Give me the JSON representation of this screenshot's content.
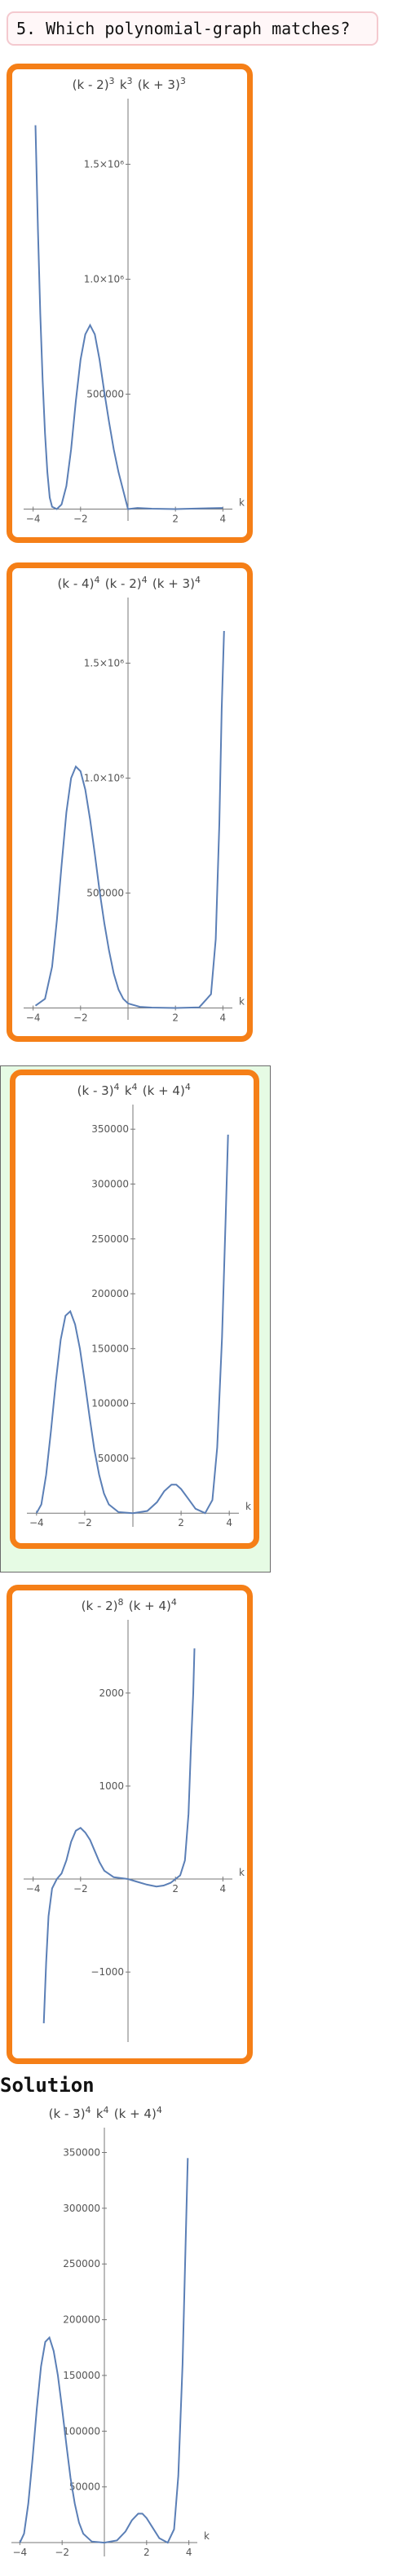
{
  "question": {
    "text": "5. Which polynomial-graph matches?"
  },
  "solution": {
    "label": "Solution"
  },
  "colors": {
    "option_border": "#f57f17",
    "correct_bg": "#e6fbe4",
    "curve": "#5b7fb6",
    "question_border": "#f4c9cf"
  },
  "chart_data": [
    {
      "type": "line",
      "role": "option-1",
      "title": "(k - 2)3 k3 (k + 3)3",
      "xlabel": "k",
      "ylabel": "",
      "xlim": [
        -4.4,
        4.4
      ],
      "ylim": [
        -30000,
        1750000
      ],
      "xticks": [
        -4,
        -2,
        2,
        4
      ],
      "yticks": [
        {
          "value": 500000,
          "label": "500000"
        },
        {
          "value": 1000000,
          "label": "1.0×10⁶"
        },
        {
          "value": 1500000,
          "label": "1.5×10⁶"
        }
      ],
      "series": [
        {
          "points": [
            [
              -3.9,
              1670000
            ],
            [
              -3.8,
              1220000
            ],
            [
              -3.7,
              850000
            ],
            [
              -3.6,
              560000
            ],
            [
              -3.5,
              330000
            ],
            [
              -3.4,
              160000
            ],
            [
              -3.3,
              50000
            ],
            [
              -3.2,
              10000
            ],
            [
              -3.0,
              0
            ],
            [
              -2.8,
              20000
            ],
            [
              -2.6,
              100000
            ],
            [
              -2.4,
              260000
            ],
            [
              -2.2,
              470000
            ],
            [
              -2.0,
              650000
            ],
            [
              -1.8,
              760000
            ],
            [
              -1.6,
              800000
            ],
            [
              -1.4,
              760000
            ],
            [
              -1.2,
              650000
            ],
            [
              -1.0,
              510000
            ],
            [
              -0.8,
              380000
            ],
            [
              -0.6,
              260000
            ],
            [
              -0.4,
              160000
            ],
            [
              -0.2,
              80000
            ],
            [
              0,
              0
            ],
            [
              0.4,
              5000
            ],
            [
              1.0,
              2000
            ],
            [
              2.0,
              0
            ],
            [
              3.0,
              3000
            ],
            [
              4.0,
              5000
            ]
          ]
        }
      ]
    },
    {
      "type": "line",
      "role": "option-2",
      "title": "(k - 4)4 (k - 2)4 (k + 3)4",
      "xlabel": "k",
      "ylabel": "",
      "xlim": [
        -4.4,
        4.4
      ],
      "ylim": [
        -30000,
        1750000
      ],
      "xticks": [
        -4,
        -2,
        2,
        4
      ],
      "yticks": [
        {
          "value": 500000,
          "label": "500000"
        },
        {
          "value": 1000000,
          "label": "1.0×10⁶"
        },
        {
          "value": 1500000,
          "label": "1.5×10⁶"
        }
      ],
      "series": [
        {
          "points": [
            [
              -3.9,
              10000
            ],
            [
              -3.5,
              40000
            ],
            [
              -3.2,
              180000
            ],
            [
              -3.0,
              380000
            ],
            [
              -2.8,
              620000
            ],
            [
              -2.6,
              850000
            ],
            [
              -2.4,
              1000000
            ],
            [
              -2.2,
              1050000
            ],
            [
              -2.0,
              1030000
            ],
            [
              -1.8,
              950000
            ],
            [
              -1.6,
              820000
            ],
            [
              -1.4,
              670000
            ],
            [
              -1.2,
              510000
            ],
            [
              -1.0,
              370000
            ],
            [
              -0.8,
              250000
            ],
            [
              -0.6,
              150000
            ],
            [
              -0.4,
              80000
            ],
            [
              -0.2,
              40000
            ],
            [
              0,
              20000
            ],
            [
              0.5,
              5000
            ],
            [
              1.0,
              2000
            ],
            [
              2.0,
              0
            ],
            [
              3.0,
              3000
            ],
            [
              3.5,
              60000
            ],
            [
              3.7,
              300000
            ],
            [
              3.85,
              800000
            ],
            [
              3.95,
              1300000
            ],
            [
              4.05,
              1640000
            ]
          ]
        }
      ]
    },
    {
      "type": "line",
      "role": "option-3-correct",
      "title": "(k - 3)4 k4 (k + 4)4",
      "xlabel": "k",
      "ylabel": "",
      "xlim": [
        -4.4,
        4.4
      ],
      "ylim": [
        -8000,
        365000
      ],
      "xticks": [
        -4,
        -2,
        2,
        4
      ],
      "yticks": [
        {
          "value": 50000,
          "label": "50000"
        },
        {
          "value": 100000,
          "label": "100000"
        },
        {
          "value": 150000,
          "label": "150000"
        },
        {
          "value": 200000,
          "label": "200000"
        },
        {
          "value": 250000,
          "label": "250000"
        },
        {
          "value": 300000,
          "label": "300000"
        },
        {
          "value": 350000,
          "label": "350000"
        }
      ],
      "series": [
        {
          "points": [
            [
              -4,
              0
            ],
            [
              -3.8,
              8000
            ],
            [
              -3.6,
              35000
            ],
            [
              -3.4,
              75000
            ],
            [
              -3.2,
              120000
            ],
            [
              -3.0,
              158000
            ],
            [
              -2.8,
              180000
            ],
            [
              -2.6,
              184000
            ],
            [
              -2.4,
              172000
            ],
            [
              -2.2,
              150000
            ],
            [
              -2.0,
              120000
            ],
            [
              -1.8,
              88000
            ],
            [
              -1.6,
              58000
            ],
            [
              -1.4,
              35000
            ],
            [
              -1.2,
              18000
            ],
            [
              -1.0,
              8000
            ],
            [
              -0.6,
              1000
            ],
            [
              0,
              0
            ],
            [
              0.6,
              2000
            ],
            [
              1.0,
              10000
            ],
            [
              1.3,
              20000
            ],
            [
              1.6,
              26000
            ],
            [
              1.8,
              26000
            ],
            [
              2.0,
              22000
            ],
            [
              2.3,
              13000
            ],
            [
              2.6,
              4000
            ],
            [
              3.0,
              0
            ],
            [
              3.3,
              12000
            ],
            [
              3.5,
              60000
            ],
            [
              3.7,
              160000
            ],
            [
              3.85,
              270000
            ],
            [
              3.95,
              345000
            ]
          ]
        }
      ]
    },
    {
      "type": "line",
      "role": "option-4",
      "title": "(k - 2)8 (k + 4)4",
      "xlabel": "k",
      "ylabel": "",
      "xlim": [
        -4.4,
        4.4
      ],
      "ylim": [
        -1700,
        2700
      ],
      "xticks": [
        -4,
        -2,
        2,
        4
      ],
      "yticks": [
        {
          "value": -1000,
          "label": "-1000"
        },
        {
          "value": 1000,
          "label": "1000"
        },
        {
          "value": 2000,
          "label": "2000"
        }
      ],
      "series": [
        {
          "points": [
            [
              -3.55,
              -1550
            ],
            [
              -3.45,
              -900
            ],
            [
              -3.35,
              -400
            ],
            [
              -3.2,
              -100
            ],
            [
              -3.0,
              0
            ],
            [
              -2.8,
              60
            ],
            [
              -2.6,
              200
            ],
            [
              -2.4,
              400
            ],
            [
              -2.2,
              520
            ],
            [
              -2.0,
              550
            ],
            [
              -1.8,
              500
            ],
            [
              -1.6,
              420
            ],
            [
              -1.4,
              300
            ],
            [
              -1.2,
              180
            ],
            [
              -1.0,
              90
            ],
            [
              -0.6,
              20
            ],
            [
              0,
              0
            ],
            [
              0.4,
              -30
            ],
            [
              0.8,
              -60
            ],
            [
              1.2,
              -80
            ],
            [
              1.5,
              -70
            ],
            [
              1.8,
              -40
            ],
            [
              2.0,
              0
            ],
            [
              2.2,
              40
            ],
            [
              2.4,
              200
            ],
            [
              2.55,
              700
            ],
            [
              2.65,
              1400
            ],
            [
              2.75,
              2000
            ],
            [
              2.8,
              2480
            ]
          ]
        }
      ]
    },
    {
      "type": "line",
      "role": "solution",
      "title": "(k - 3)4 k4 (k + 4)4",
      "xlabel": "k",
      "ylabel": "",
      "xlim": [
        -4.4,
        4.4
      ],
      "ylim": [
        -8000,
        365000
      ],
      "xticks": [
        -4,
        -2,
        2,
        4
      ],
      "yticks": [
        {
          "value": 50000,
          "label": "50000"
        },
        {
          "value": 100000,
          "label": "100000"
        },
        {
          "value": 150000,
          "label": "150000"
        },
        {
          "value": 200000,
          "label": "200000"
        },
        {
          "value": 250000,
          "label": "250000"
        },
        {
          "value": 300000,
          "label": "300000"
        },
        {
          "value": 350000,
          "label": "350000"
        }
      ],
      "series": [
        {
          "points": [
            [
              -4,
              0
            ],
            [
              -3.8,
              8000
            ],
            [
              -3.6,
              35000
            ],
            [
              -3.4,
              75000
            ],
            [
              -3.2,
              120000
            ],
            [
              -3.0,
              158000
            ],
            [
              -2.8,
              180000
            ],
            [
              -2.6,
              184000
            ],
            [
              -2.4,
              172000
            ],
            [
              -2.2,
              150000
            ],
            [
              -2.0,
              120000
            ],
            [
              -1.8,
              88000
            ],
            [
              -1.6,
              58000
            ],
            [
              -1.4,
              35000
            ],
            [
              -1.2,
              18000
            ],
            [
              -1.0,
              8000
            ],
            [
              -0.6,
              1000
            ],
            [
              0,
              0
            ],
            [
              0.6,
              2000
            ],
            [
              1.0,
              10000
            ],
            [
              1.3,
              20000
            ],
            [
              1.6,
              26000
            ],
            [
              1.8,
              26000
            ],
            [
              2.0,
              22000
            ],
            [
              2.3,
              13000
            ],
            [
              2.6,
              4000
            ],
            [
              3.0,
              0
            ],
            [
              3.3,
              12000
            ],
            [
              3.5,
              60000
            ],
            [
              3.7,
              160000
            ],
            [
              3.85,
              270000
            ],
            [
              3.95,
              345000
            ]
          ]
        }
      ]
    }
  ]
}
